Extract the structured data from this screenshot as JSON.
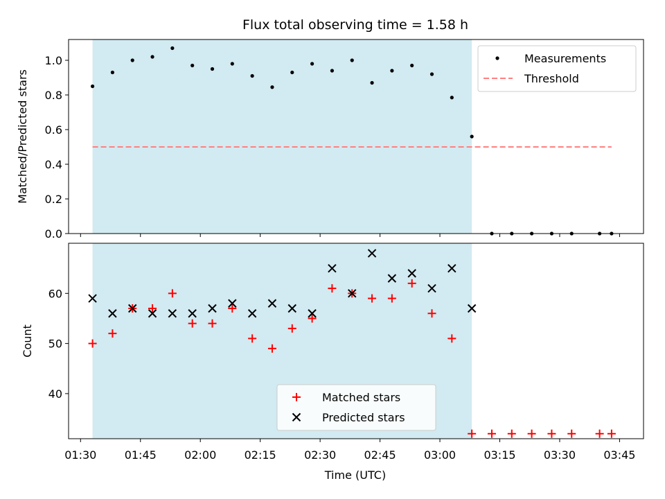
{
  "chart_data": [
    {
      "type": "scatter",
      "title": "Flux total observing time = 1.58 h",
      "ylabel": "Matched/Predicted stars",
      "ylim": [
        0,
        1.12
      ],
      "yticks": [
        "0.0",
        "0.2",
        "0.4",
        "0.6",
        "0.8",
        "1.0"
      ],
      "xlim": [
        "01:27",
        "03:51"
      ],
      "shaded_span": [
        "01:33",
        "03:08"
      ],
      "legend_position": "top-right",
      "series": [
        {
          "name": "Measurements",
          "color": "#000000",
          "marker": "dot",
          "x": [
            "01:33",
            "01:38",
            "01:43",
            "01:48",
            "01:53",
            "01:58",
            "02:03",
            "02:08",
            "02:13",
            "02:18",
            "02:23",
            "02:28",
            "02:33",
            "02:38",
            "02:43",
            "02:48",
            "02:53",
            "02:58",
            "03:03",
            "03:08",
            "03:13",
            "03:18",
            "03:23",
            "03:28",
            "03:33",
            "03:40",
            "03:43"
          ],
          "values": [
            0.85,
            0.93,
            1.0,
            1.02,
            1.07,
            0.97,
            0.95,
            0.98,
            0.91,
            0.845,
            0.93,
            0.98,
            0.94,
            1.0,
            0.87,
            0.94,
            0.97,
            0.92,
            0.785,
            0.56,
            0,
            0,
            0,
            0,
            0,
            0,
            0
          ]
        },
        {
          "name": "Threshold",
          "color": "#ff7f7f",
          "style": "dashed",
          "x": [
            "01:33",
            "03:43"
          ],
          "values": [
            0.5,
            0.5
          ]
        }
      ]
    },
    {
      "type": "scatter",
      "xlabel": "Time (UTC)",
      "ylabel": "Count",
      "ylim": [
        31,
        70
      ],
      "yticks": [
        "40",
        "50",
        "60"
      ],
      "xlim": [
        "01:27",
        "03:51"
      ],
      "xticks": [
        "01:30",
        "01:45",
        "02:00",
        "02:15",
        "02:30",
        "02:45",
        "03:00",
        "03:15",
        "03:30",
        "03:45"
      ],
      "shaded_span": [
        "01:33",
        "03:08"
      ],
      "legend_position": "bottom-center",
      "series": [
        {
          "name": "Matched stars",
          "color": "#ff0000",
          "marker": "plus",
          "x": [
            "01:33",
            "01:38",
            "01:43",
            "01:48",
            "01:53",
            "01:58",
            "02:03",
            "02:08",
            "02:13",
            "02:18",
            "02:23",
            "02:28",
            "02:33",
            "02:38",
            "02:43",
            "02:48",
            "02:53",
            "02:58",
            "03:03",
            "03:08",
            "03:13",
            "03:18",
            "03:23",
            "03:28",
            "03:33",
            "03:40",
            "03:43"
          ],
          "values": [
            50,
            52,
            57,
            57,
            60,
            54,
            54,
            57,
            51,
            49,
            53,
            55,
            61,
            60,
            59,
            59,
            62,
            56,
            51,
            32,
            32,
            32,
            32,
            32,
            32,
            32,
            32
          ]
        },
        {
          "name": "Predicted stars",
          "color": "#000000",
          "marker": "x",
          "x": [
            "01:33",
            "01:38",
            "01:43",
            "01:48",
            "01:53",
            "01:58",
            "02:03",
            "02:08",
            "02:13",
            "02:18",
            "02:23",
            "02:28",
            "02:33",
            "02:38",
            "02:43",
            "02:48",
            "02:53",
            "02:58",
            "03:03",
            "03:08"
          ],
          "values": [
            59,
            56,
            57,
            56,
            56,
            56,
            57,
            58,
            56,
            58,
            57,
            56,
            65,
            60,
            68,
            63,
            64,
            61,
            65,
            57
          ]
        }
      ]
    }
  ],
  "colors": {
    "span_fill": "#add8e6",
    "threshold": "#ff7f7f",
    "matched": "#ff0000",
    "predicted": "#000000"
  }
}
